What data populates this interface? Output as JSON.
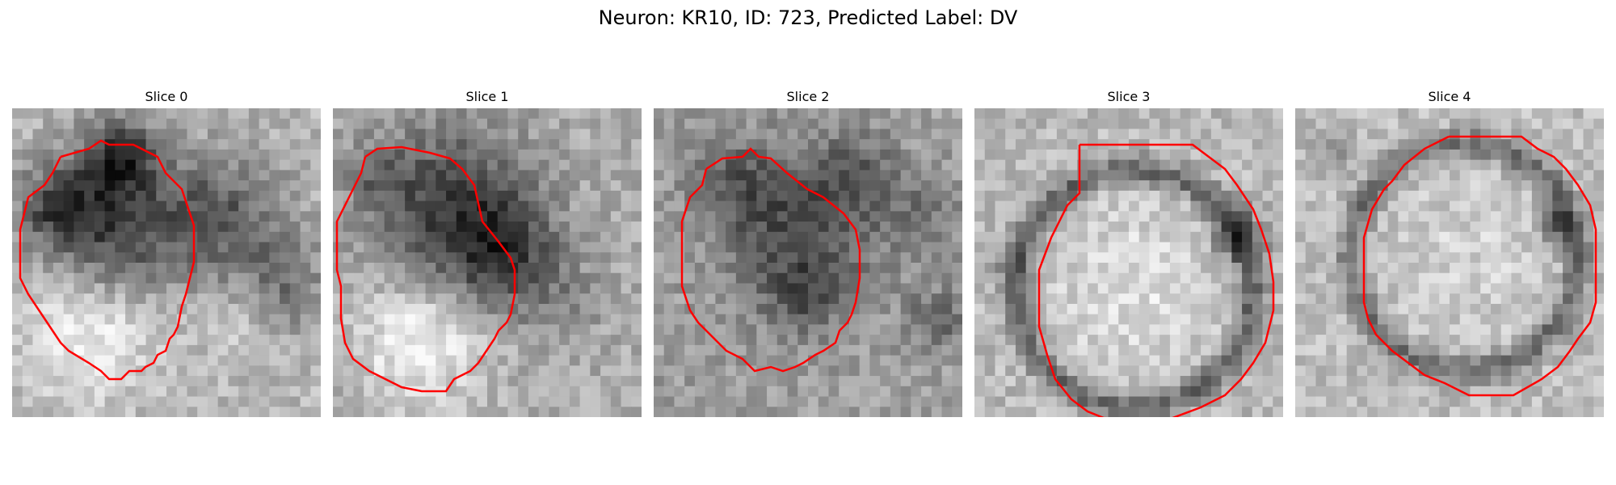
{
  "figure": {
    "title": "Neuron: KR10, ID: 723, Predicted Label: DV"
  },
  "panels": [
    {
      "title": "Slice 0",
      "contour_color": "#ff0000"
    },
    {
      "title": "Slice 1",
      "contour_color": "#ff0000"
    },
    {
      "title": "Slice 2",
      "contour_color": "#ff0000"
    },
    {
      "title": "Slice 3",
      "contour_color": "#ff0000"
    },
    {
      "title": "Slice 4",
      "contour_color": "#ff0000"
    }
  ]
}
